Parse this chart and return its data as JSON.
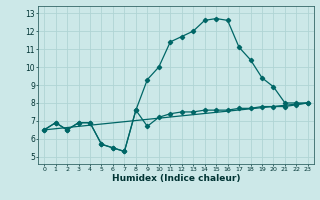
{
  "xlabel": "Humidex (Indice chaleur)",
  "bg_color": "#cce8e8",
  "grid_color": "#b0d4d4",
  "line_color": "#006666",
  "xlim": [
    -0.5,
    23.5
  ],
  "ylim": [
    4.6,
    13.4
  ],
  "line1_x": [
    0,
    1,
    2,
    3,
    4,
    5,
    6,
    7,
    8,
    9,
    10,
    11,
    12,
    13,
    14,
    15,
    16,
    17,
    18,
    19,
    20,
    21,
    22,
    23
  ],
  "line1_y": [
    6.5,
    6.9,
    6.5,
    6.9,
    6.9,
    5.7,
    5.5,
    5.3,
    7.6,
    6.7,
    7.2,
    7.4,
    7.5,
    7.5,
    7.6,
    7.6,
    7.6,
    7.7,
    7.7,
    7.8,
    7.8,
    7.8,
    7.9,
    8.0
  ],
  "line2_x": [
    0,
    1,
    2,
    3,
    4,
    5,
    6,
    7,
    8,
    9,
    10,
    11,
    12,
    13,
    14,
    15,
    16,
    17,
    18,
    19,
    20,
    21,
    22,
    23
  ],
  "line2_y": [
    6.5,
    6.9,
    6.5,
    6.9,
    6.9,
    5.7,
    5.5,
    5.3,
    7.6,
    9.3,
    10.0,
    11.4,
    11.7,
    12.0,
    12.6,
    12.7,
    12.6,
    11.1,
    10.4,
    9.4,
    8.9,
    8.0,
    8.0,
    8.0
  ],
  "line3_x": [
    0,
    23
  ],
  "line3_y": [
    6.5,
    8.0
  ],
  "yticks": [
    5,
    6,
    7,
    8,
    9,
    10,
    11,
    12,
    13
  ]
}
